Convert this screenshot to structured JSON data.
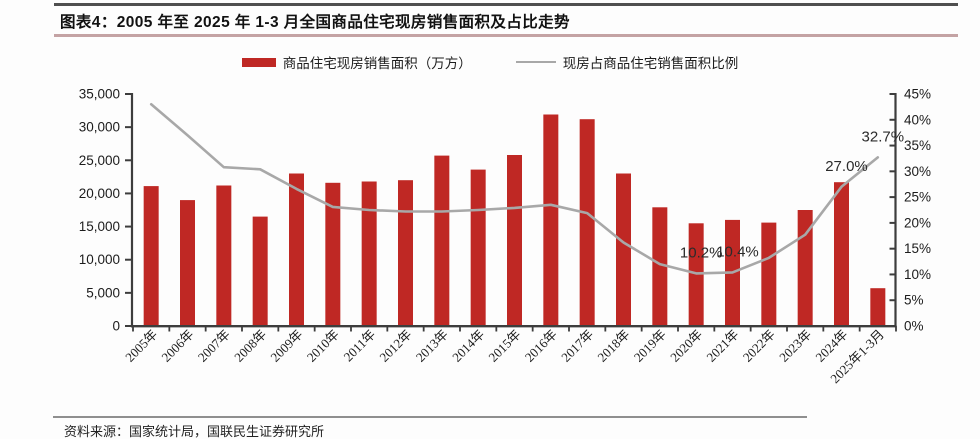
{
  "header": {
    "title": "图表4：2005 年至 2025 年 1-3 月全国商品住宅现房销售面积及占比走势"
  },
  "legend": {
    "bar_label": "商品住宅现房销售面积（万方）",
    "line_label": "现房占商品住宅销售面积比例"
  },
  "footer": {
    "source": "资料来源：国家统计局，国联民生证券研究所"
  },
  "colors": {
    "bar": "#bf2824",
    "line": "#a8a8a8",
    "axis": "#3d3d3d",
    "top_rule": "#4f4f4f",
    "title_rule": "#c4a3a4"
  },
  "chart_data": {
    "type": "bar",
    "subtype": "combo-bar-line",
    "title": "2005 年至 2025 年 1-3 月全国商品住宅现房销售面积及占比走势",
    "categories": [
      "2005年",
      "2006年",
      "2007年",
      "2008年",
      "2009年",
      "2010年",
      "2011年",
      "2012年",
      "2013年",
      "2014年",
      "2015年",
      "2016年",
      "2017年",
      "2018年",
      "2019年",
      "2020年",
      "2021年",
      "2022年",
      "2023年",
      "2024年",
      "2025年1-3月"
    ],
    "series": [
      {
        "name": "商品住宅现房销售面积（万方）",
        "type": "bar",
        "axis": "left",
        "color": "#bf2824",
        "values": [
          21100,
          19000,
          21200,
          16500,
          23000,
          21600,
          21800,
          22000,
          25700,
          23600,
          25800,
          31900,
          31200,
          23000,
          17900,
          15500,
          16000,
          15600,
          17500,
          21700,
          5700
        ]
      },
      {
        "name": "现房占商品住宅销售面积比例",
        "type": "line",
        "axis": "right",
        "color": "#a8a8a8",
        "values": [
          43.0,
          37.0,
          30.8,
          30.4,
          26.6,
          23.1,
          22.5,
          22.2,
          22.2,
          22.5,
          22.9,
          23.5,
          21.9,
          16.2,
          12.0,
          10.2,
          10.4,
          13.2,
          17.7,
          27.0,
          32.7
        ]
      }
    ],
    "left_axis": {
      "min": 0,
      "max": 35000,
      "step": 5000,
      "tick_labels": [
        "0",
        "5,000",
        "10,000",
        "15,000",
        "20,000",
        "25,000",
        "30,000",
        "35,000"
      ]
    },
    "right_axis": {
      "min": 0,
      "max": 45,
      "step": 5,
      "tick_labels": [
        "0%",
        "5%",
        "10%",
        "15%",
        "20%",
        "25%",
        "30%",
        "35%",
        "40%",
        "45%"
      ]
    },
    "annotations": [
      {
        "index": 15,
        "category": "2020年",
        "text": "10.2%"
      },
      {
        "index": 16,
        "category": "2021年",
        "text": "10.4%"
      },
      {
        "index": 19,
        "category": "2024年",
        "text": "27.0%"
      },
      {
        "index": 20,
        "category": "2025年1-3月",
        "text": "32.7%"
      }
    ],
    "grid": false,
    "legend_position": "top"
  }
}
